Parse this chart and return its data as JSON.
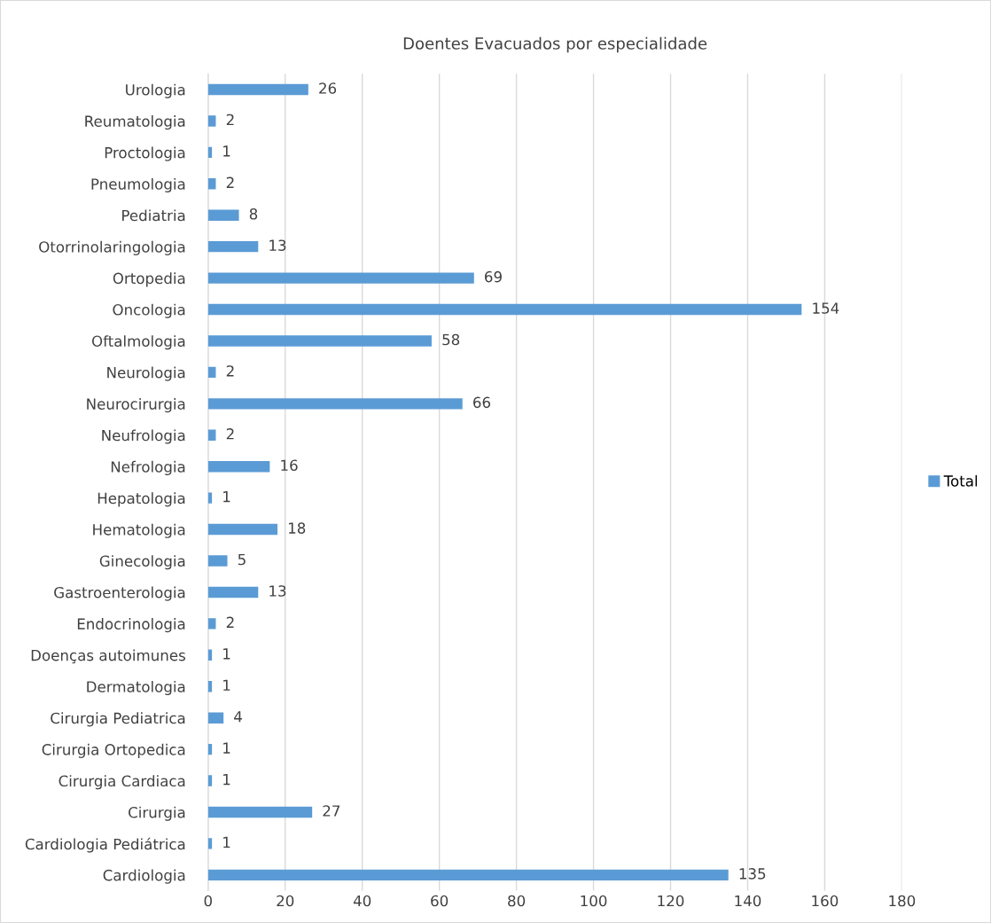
{
  "chart_data": {
    "type": "bar",
    "orientation": "horizontal",
    "title": "Doentes Evacuados por especialidade",
    "categories": [
      "Urologia",
      "Reumatologia",
      "Proctologia",
      "Pneumologia",
      "Pediatria",
      "Otorrinolaringologia",
      "Ortopedia",
      "Oncologia",
      "Oftalmologia",
      "Neurologia",
      "Neurocirurgia",
      "Neufrologia",
      "Nefrologia",
      "Hepatologia",
      "Hematologia",
      "Ginecologia",
      "Gastroenterologia",
      "Endocrinologia",
      "Doenças autoimunes",
      "Dermatologia",
      "Cirurgia Pediatrica",
      "Cirurgia Ortopedica",
      "Cirurgia Cardiaca",
      "Cirurgia",
      "Cardiologia Pediátrica",
      "Cardiologia"
    ],
    "series": [
      {
        "name": "Total",
        "color": "#5b9bd5",
        "values": [
          26,
          2,
          1,
          2,
          8,
          13,
          69,
          154,
          58,
          2,
          66,
          2,
          16,
          1,
          18,
          5,
          13,
          2,
          1,
          1,
          4,
          1,
          1,
          27,
          1,
          135
        ]
      }
    ],
    "xlim": [
      0,
      180
    ],
    "xticks": [
      0,
      20,
      40,
      60,
      80,
      100,
      120,
      140,
      160,
      180
    ],
    "grid": "x",
    "legend": "right",
    "data_labels": true
  }
}
